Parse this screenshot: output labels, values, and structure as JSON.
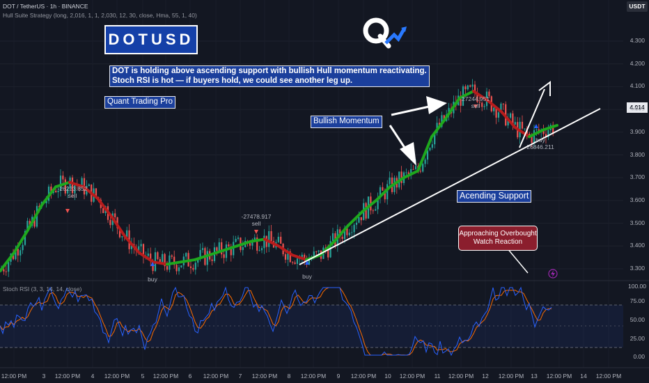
{
  "header": {
    "symbol_line": "DOT / TetherUS · 1h · BINANCE",
    "strategy_line": "Hull Suite Strategy (long, 2,016, 1, 1, 2,030, 12, 30, close, Hma, 55, 1, 40)"
  },
  "currency": "USDT",
  "current_price": "4.014",
  "price_ticks": [
    "4.300",
    "4.200",
    "4.100",
    "4.000",
    "3.900",
    "3.800",
    "3.700",
    "3.600",
    "3.500",
    "3.400",
    "3.300"
  ],
  "stoch_ticks": [
    "100.00",
    "75.00",
    "50.00",
    "25.00",
    "0.00"
  ],
  "x_ticks": [
    "12:00 PM",
    "3",
    "12:00 PM",
    "4",
    "12:00 PM",
    "5",
    "12:00 PM",
    "6",
    "12:00 PM",
    "7",
    "12:00 PM",
    "8",
    "12:00 PM",
    "9",
    "12:00 PM",
    "10",
    "12:00 PM",
    "11",
    "12:00 PM",
    "12",
    "12:00 PM",
    "13",
    "12:00 PM",
    "14",
    "12:00 PM"
  ],
  "annotations": {
    "title": "DOTUSD",
    "description_line1": "DOT is holding above ascending support with bullish Hull momentum reactivating.",
    "description_line2": "Stoch RSI is hot — if buyers hold, we could see another leg up.",
    "brand": "Quant Trading Pro",
    "bullish": "Bullish Momentum",
    "support": "Acending Support",
    "overbought_line1": "Approaching Overbought",
    "overbought_line2": "Watch Reaction"
  },
  "trade_labels": [
    {
      "value": "-26223.852",
      "side": "sell"
    },
    {
      "value": "-27478.917",
      "side": "sell"
    },
    {
      "value": "27244.951",
      "side": "sell"
    },
    {
      "value": "26846.211",
      "side": "buy"
    },
    {
      "value": "",
      "side": "buy"
    },
    {
      "value": "",
      "side": "buy"
    }
  ],
  "stoch_label": "Stoch RSI (3, 3, 14, 14, close)",
  "colors": {
    "bg": "#131722",
    "up": "#26a69a",
    "down": "#ef5350",
    "hull_up": "#1ea81e",
    "hull_down": "#b71c1c",
    "stoch_k": "#2962ff",
    "stoch_d": "#ff6d00"
  },
  "chart_data": {
    "type": "line",
    "series": [
      {
        "name": "Hull MA",
        "x": [
          0,
          20,
          40,
          60,
          80,
          100,
          120,
          140,
          160,
          180,
          200,
          220,
          240,
          260,
          280,
          300,
          320,
          340,
          360,
          380,
          400,
          420,
          440,
          460,
          480,
          500,
          520,
          540,
          560,
          580,
          600,
          620,
          640,
          660,
          680,
          700,
          720,
          740,
          760,
          780,
          800
        ],
        "values": [
          3.29,
          3.37,
          3.47,
          3.58,
          3.66,
          3.68,
          3.66,
          3.61,
          3.53,
          3.44,
          3.37,
          3.33,
          3.32,
          3.33,
          3.34,
          3.36,
          3.38,
          3.4,
          3.42,
          3.43,
          3.4,
          3.36,
          3.34,
          3.36,
          3.42,
          3.49,
          3.55,
          3.6,
          3.66,
          3.7,
          3.73,
          3.88,
          3.96,
          4.05,
          4.08,
          4.04,
          3.99,
          3.92,
          3.88,
          3.91,
          3.93
        ]
      }
    ],
    "ylim": [
      3.25,
      4.35
    ]
  }
}
